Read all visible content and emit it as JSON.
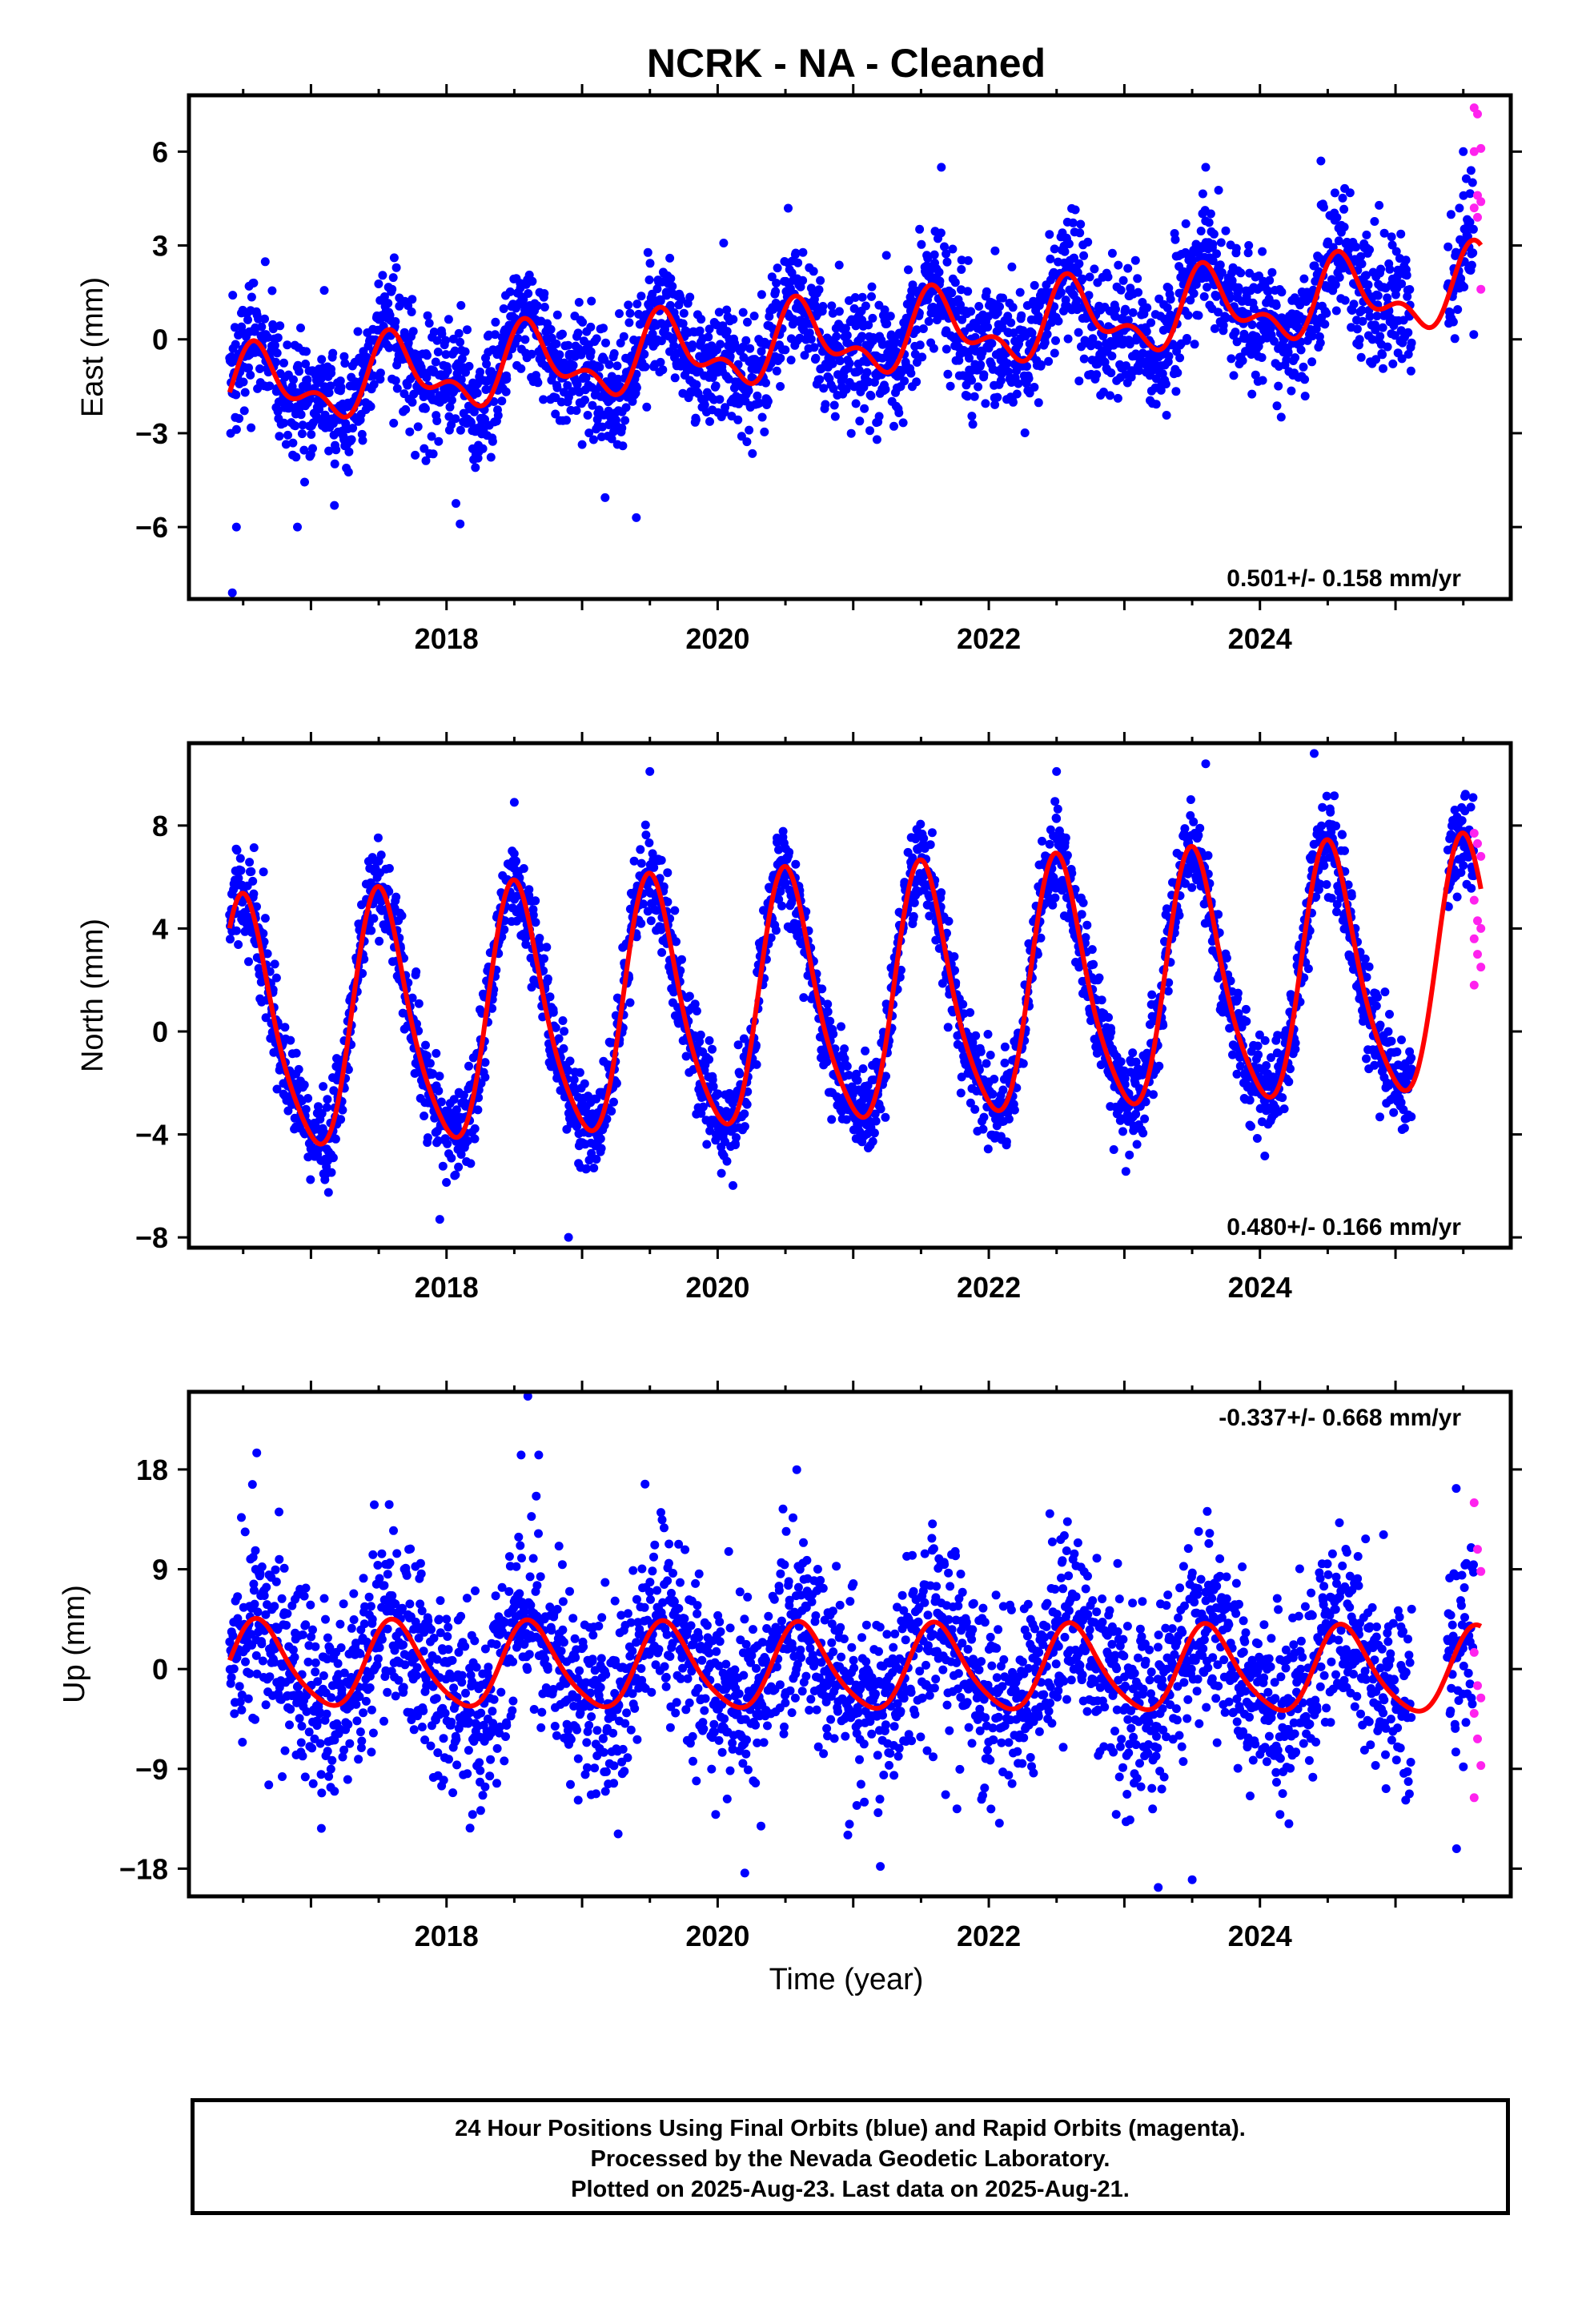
{
  "title": "NCRK  - NA - Cleaned",
  "xlabel": "Time (year)",
  "caption": {
    "line1": "24 Hour Positions Using Final Orbits (blue) and Rapid Orbits (magenta).",
    "line2": "Processed by the Nevada Geodetic Laboratory.",
    "line3": "Plotted on 2025-Aug-23. Last data on 2025-Aug-21."
  },
  "colors": {
    "final": "#0000ff",
    "rapid": "#ff22ee",
    "model": "#ff0000",
    "axis": "#000000"
  },
  "chart_data": [
    {
      "type": "scatter",
      "ylabel": "East (mm)",
      "rate_text": "0.501+/- 0.158 mm/yr",
      "rate_position": "bottom-right",
      "xlim": [
        2016.1,
        2025.85
      ],
      "ylim": [
        -8.3,
        7.8
      ],
      "yticks": [
        -6,
        -3,
        0,
        3,
        6
      ],
      "xticks": [
        2018,
        2020,
        2022,
        2024
      ],
      "model": {
        "t0": 2016.4,
        "x": [
          2016.4,
          2025.63
        ],
        "y": [
          -3.2,
          3.8
        ],
        "trend": [
          -1.65,
          1.65
        ],
        "annual_amp": 1.0,
        "annual_phase_peak": 0.62,
        "semiannual_amp": 0.6
      },
      "scatter_sigma": 1.0,
      "series": [
        {
          "name": "Final Orbits (blue)",
          "x_range": [
            2016.4,
            2025.58
          ],
          "color": "#0000ff"
        },
        {
          "name": "Rapid Orbits (magenta)",
          "x_range": [
            2025.58,
            2025.63
          ],
          "color": "#ff22ee",
          "y": [
            7.4,
            7.2,
            6.1,
            6.0,
            4.6,
            4.4,
            4.2,
            3.9,
            1.6
          ]
        }
      ],
      "outliers": [
        [
          2016.42,
          -8.1
        ],
        [
          2016.45,
          -6.0
        ],
        [
          2016.9,
          -6.0
        ],
        [
          2018.1,
          -5.9
        ],
        [
          2019.4,
          -5.7
        ],
        [
          2021.65,
          5.5
        ],
        [
          2023.6,
          5.5
        ],
        [
          2024.45,
          5.7
        ],
        [
          2025.5,
          6.0
        ]
      ]
    },
    {
      "type": "scatter",
      "ylabel": "North (mm)",
      "rate_text": "0.480+/- 0.166 mm/yr",
      "rate_position": "bottom-right",
      "xlim": [
        2016.1,
        2025.85
      ],
      "ylim": [
        -8.4,
        11.2
      ],
      "yticks": [
        -8,
        -4,
        0,
        4,
        8
      ],
      "xticks": [
        2018,
        2020,
        2022,
        2024
      ],
      "model": {
        "t0": 2016.4,
        "x": [
          2016.4,
          2025.63
        ],
        "y": [
          -1.3,
          6.0
        ],
        "trend": [
          -0.1,
          2.3
        ],
        "annual_amp": 4.8,
        "annual_phase_peak": 0.52,
        "semiannual_amp": 0.8
      },
      "scatter_sigma": 0.9,
      "series": [
        {
          "name": "Final Orbits (blue)",
          "x_range": [
            2016.4,
            2025.58
          ],
          "color": "#0000ff"
        },
        {
          "name": "Rapid Orbits (magenta)",
          "x_range": [
            2025.58,
            2025.63
          ],
          "color": "#ff22ee",
          "y": [
            7.7,
            7.3,
            6.8,
            5.1,
            4.3,
            4.0,
            3.6,
            3.0,
            2.5,
            1.8
          ]
        }
      ],
      "outliers": [
        [
          2018.9,
          -8.0
        ],
        [
          2019.5,
          10.1
        ],
        [
          2022.5,
          10.1
        ],
        [
          2023.6,
          10.4
        ],
        [
          2024.4,
          10.8
        ],
        [
          2016.65,
          6.2
        ],
        [
          2018.5,
          8.9
        ],
        [
          2017.95,
          -7.3
        ]
      ]
    },
    {
      "type": "scatter",
      "ylabel": "Up (mm)",
      "rate_text": "-0.337+/- 0.668 mm/yr",
      "rate_position": "top-right",
      "xlim": [
        2016.1,
        2025.85
      ],
      "ylim": [
        -20.5,
        25.0
      ],
      "yticks": [
        -18,
        -9,
        0,
        9,
        18
      ],
      "xticks": [
        2018,
        2020,
        2022,
        2024
      ],
      "model": {
        "t0": 2016.4,
        "x": [
          2016.4,
          2025.63
        ],
        "y": [
          -2.0,
          1.8
        ],
        "trend": [
          0.3,
          -0.3
        ],
        "annual_amp": 3.8,
        "annual_phase_peak": 0.62,
        "semiannual_amp": 0.6
      },
      "scatter_sigma": 4.2,
      "series": [
        {
          "name": "Final Orbits (blue)",
          "x_range": [
            2016.4,
            2025.58
          ],
          "color": "#0000ff"
        },
        {
          "name": "Rapid Orbits (magenta)",
          "x_range": [
            2025.58,
            2025.63
          ],
          "color": "#ff22ee",
          "y": [
            15.0,
            10.8,
            8.8,
            1.5,
            -1.5,
            -2.6,
            -4.0,
            -6.3,
            -8.7,
            -11.6
          ]
        }
      ],
      "outliers": [
        [
          2018.6,
          24.6
        ],
        [
          2016.6,
          19.5
        ],
        [
          2018.55,
          19.3
        ],
        [
          2018.68,
          19.3
        ],
        [
          2020.2,
          -18.4
        ],
        [
          2023.25,
          -19.7
        ],
        [
          2023.5,
          -19.0
        ],
        [
          2021.2,
          -17.8
        ],
        [
          2025.45,
          -16.2
        ]
      ]
    }
  ]
}
